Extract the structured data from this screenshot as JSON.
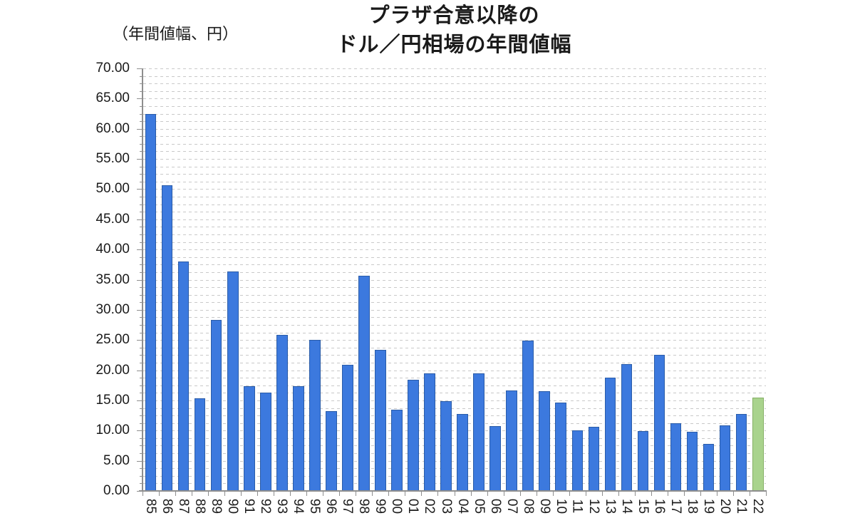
{
  "chart_data": {
    "type": "bar",
    "title_lines": [
      "プラザ合意以降の",
      "ドル／円相場の年間値幅"
    ],
    "y_axis_unit_label": "（年間値幅、円）",
    "categories": [
      "85",
      "86",
      "87",
      "88",
      "89",
      "90",
      "91",
      "92",
      "93",
      "94",
      "95",
      "96",
      "97",
      "98",
      "99",
      "00",
      "01",
      "02",
      "03",
      "04",
      "05",
      "06",
      "07",
      "08",
      "09",
      "10",
      "11",
      "12",
      "13",
      "14",
      "15",
      "16",
      "17",
      "18",
      "19",
      "20",
      "21",
      "22"
    ],
    "values": [
      62.5,
      50.6,
      38.0,
      15.3,
      28.3,
      36.4,
      17.3,
      16.3,
      25.9,
      17.4,
      25.0,
      13.2,
      20.9,
      35.7,
      23.4,
      13.5,
      18.4,
      19.5,
      14.9,
      12.8,
      19.5,
      10.7,
      16.7,
      24.9,
      16.5,
      14.6,
      10.0,
      10.6,
      18.8,
      21.0,
      9.9,
      22.6,
      11.2,
      9.8,
      7.8,
      10.9,
      12.8,
      15.5
    ],
    "ylim": [
      0,
      70
    ],
    "y_tick_step": 5,
    "y_minor_grid_step": 1.25,
    "y_tick_labels": [
      "0.00",
      "5.00",
      "10.00",
      "15.00",
      "20.00",
      "25.00",
      "30.00",
      "35.00",
      "40.00",
      "45.00",
      "50.00",
      "55.00",
      "60.00",
      "65.00",
      "70.00"
    ],
    "grid": "horizontal-dashed",
    "legend": "none",
    "xlabel": "",
    "ylabel": "",
    "bar_color": "#3C79DE",
    "bar_border_color": "#2A5CA8",
    "highlight_category": "22",
    "highlight_color": "#A9D38D",
    "highlight_border_color": "#85B065",
    "axis_color": "#8E8E8E",
    "gridline_color": "#C9C9C9",
    "text_color": "#1A1A1A"
  }
}
